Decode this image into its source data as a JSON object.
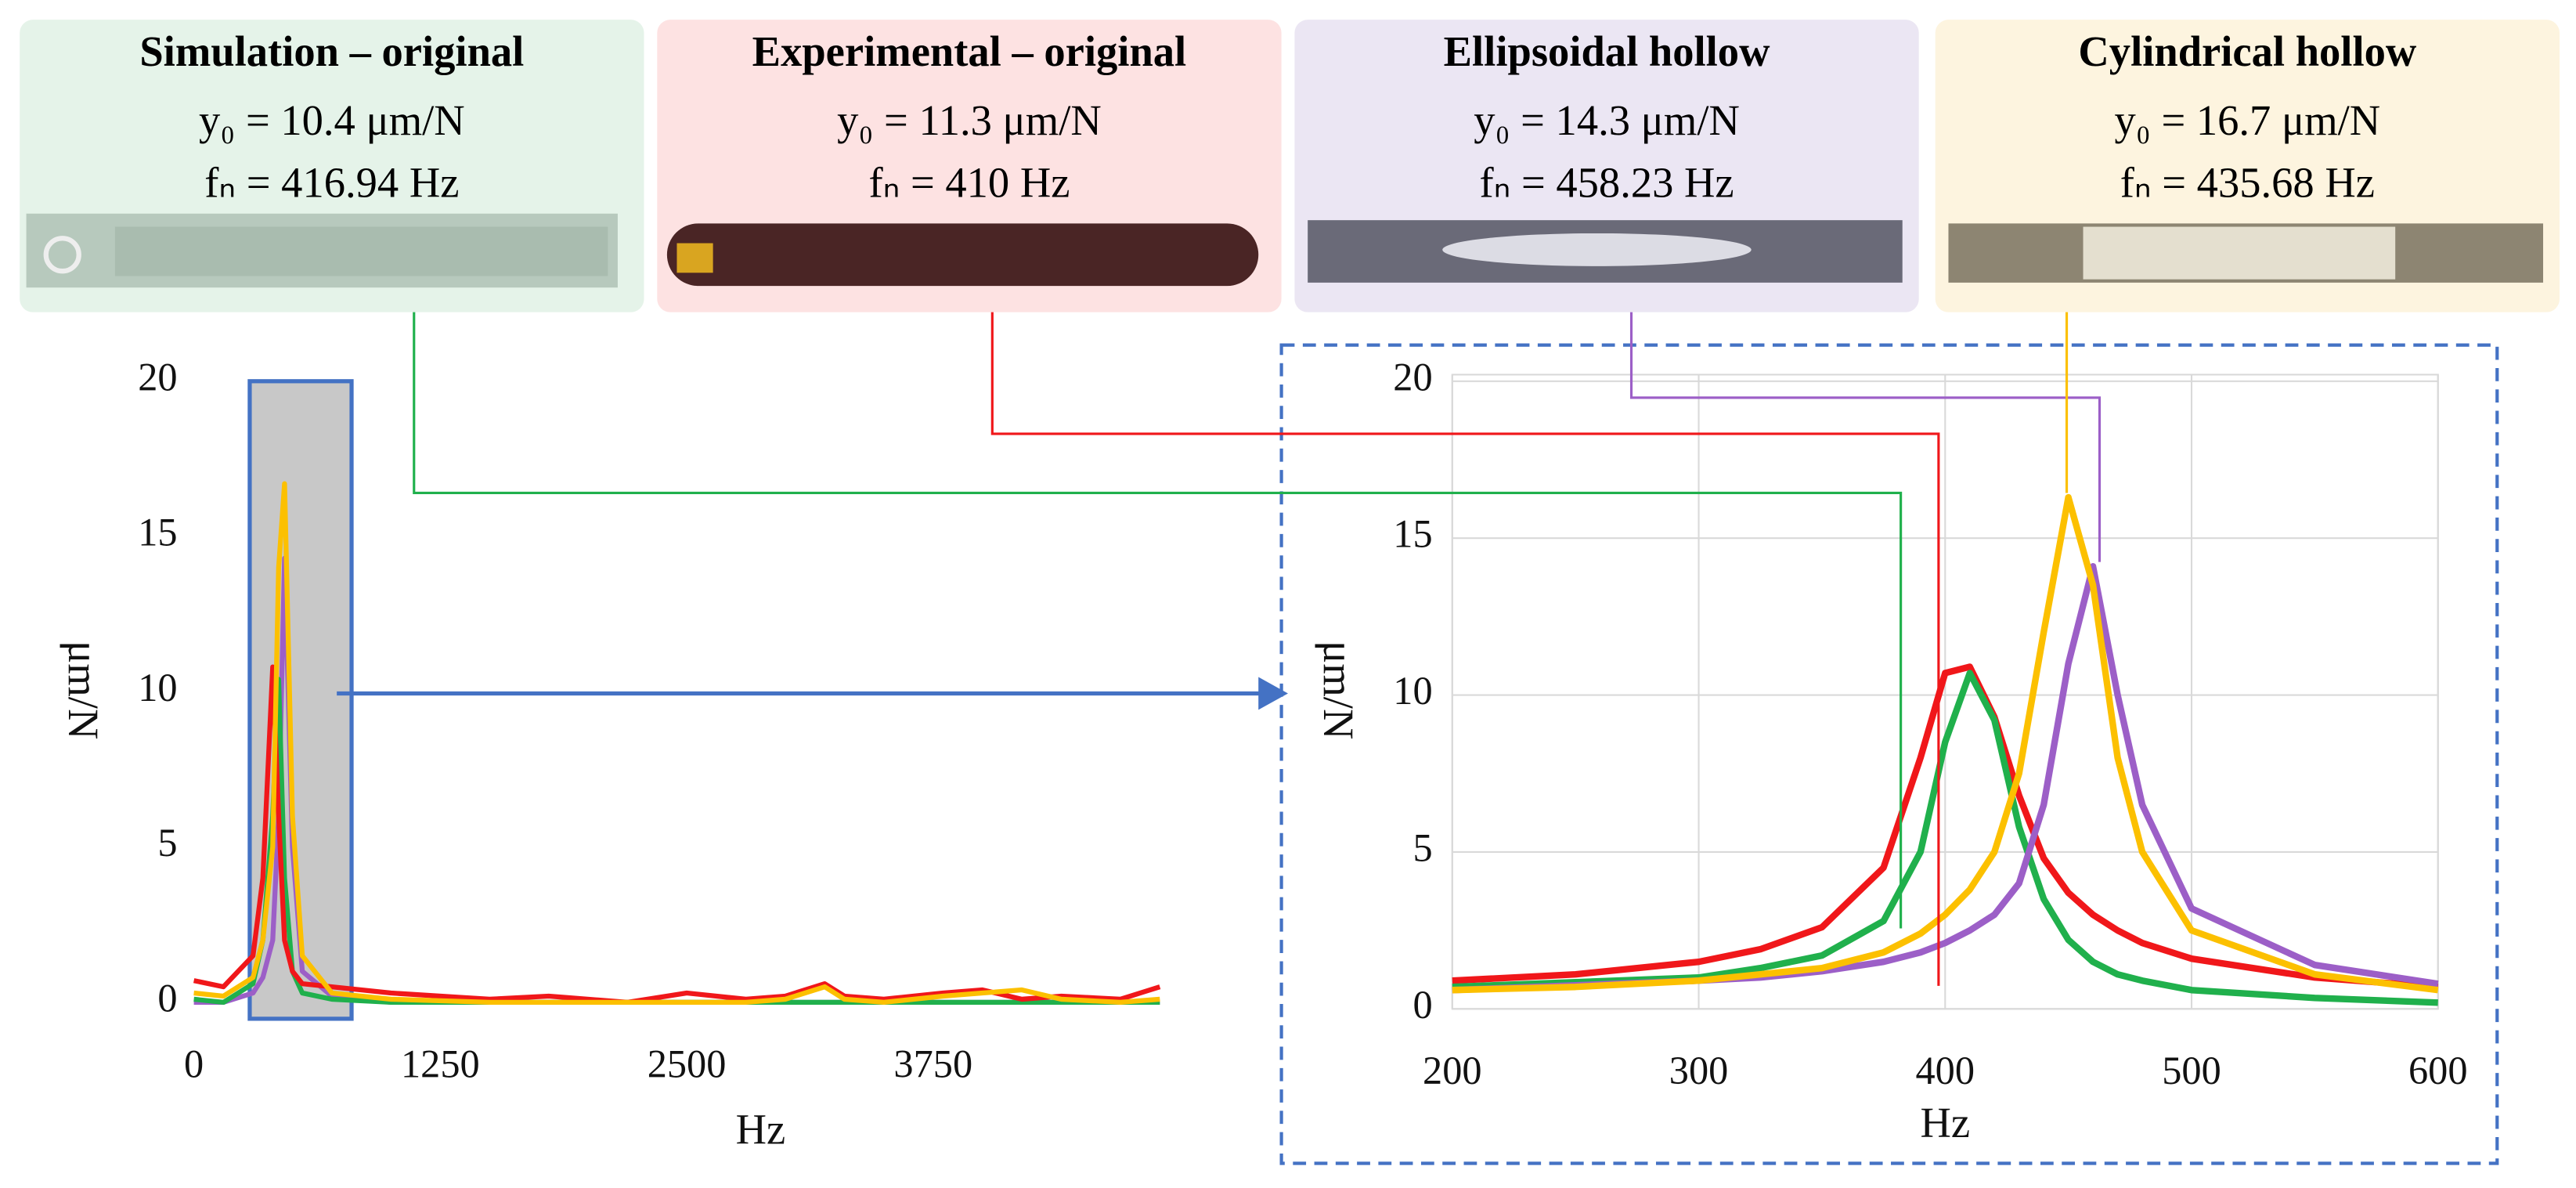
{
  "panels": [
    {
      "title": "Simulation – original",
      "stiffness": "y₀ = 10.4 μm/N",
      "frequency": "fₙ = 416.94 Hz",
      "color": "#e5f3e9"
    },
    {
      "title": "Experimental – original",
      "stiffness": "y₀ = 11.3 μm/N",
      "frequency": "fₙ = 410 Hz",
      "color": "#fde2e2"
    },
    {
      "title": "Ellipsoidal hollow",
      "stiffness": "y₀ = 14.3 μm/N",
      "frequency": "fₙ = 458.23 Hz",
      "color": "#ebe6f3"
    },
    {
      "title": "Cylindrical hollow",
      "stiffness": "y₀ = 16.7 μm/N",
      "frequency": "fₙ = 435.68 Hz",
      "color": "#fdf4df"
    }
  ],
  "chart_data": [
    {
      "type": "line",
      "xlabel": "Hz",
      "ylabel": "μm/N",
      "grid": false,
      "x": [
        0,
        150,
        300,
        350,
        400,
        430,
        460,
        500,
        550,
        700,
        1000,
        1500,
        1800,
        2200,
        2500,
        2800,
        3000,
        3200,
        3300,
        3500,
        3800,
        4000,
        4200,
        4400,
        4700,
        4900
      ],
      "xlim": [
        0,
        5250
      ],
      "xticks": [
        0,
        1250,
        2500,
        3750
      ],
      "ylim": [
        0,
        20
      ],
      "yticks": [
        0,
        5,
        10,
        15,
        20
      ],
      "series": [
        {
          "color": "#9c5fc7",
          "values": [
            0,
            0,
            0.3,
            0.8,
            2,
            6,
            14.3,
            5,
            1,
            0.2,
            0,
            0,
            0,
            0,
            0,
            0,
            0,
            0,
            0,
            0,
            0,
            0,
            0,
            0,
            0,
            0
          ]
        },
        {
          "color": "#20b04c",
          "values": [
            0.1,
            0,
            0.6,
            2,
            6,
            10.4,
            4,
            1,
            0.3,
            0.1,
            0,
            0,
            0,
            0,
            0,
            0,
            0,
            0,
            0,
            0,
            0,
            0,
            0,
            0,
            0,
            0
          ]
        },
        {
          "color": "#f0171a",
          "values": [
            0.7,
            0.5,
            1.5,
            4,
            10.8,
            6,
            2,
            1,
            0.6,
            0.5,
            0.3,
            0.1,
            0.2,
            0,
            0.3,
            0.1,
            0.2,
            0.6,
            0.2,
            0.1,
            0.3,
            0.4,
            0.1,
            0.2,
            0.1,
            0.5
          ]
        },
        {
          "color": "#fcc000",
          "values": [
            0.3,
            0.2,
            0.8,
            2,
            5,
            14,
            16.7,
            6,
            1.5,
            0.3,
            0.1,
            0,
            0,
            0,
            0,
            0,
            0.1,
            0.5,
            0.1,
            0,
            0.2,
            0.3,
            0.4,
            0.1,
            0,
            0.1
          ]
        }
      ]
    },
    {
      "type": "line",
      "xlabel": "Hz",
      "ylabel": "μm/N",
      "grid": true,
      "x": [
        200,
        250,
        300,
        325,
        350,
        375,
        390,
        400,
        410,
        420,
        430,
        440,
        450,
        460,
        470,
        480,
        500,
        550,
        600
      ],
      "xlim": [
        200,
        600
      ],
      "xticks": [
        200,
        300,
        400,
        500,
        600
      ],
      "ylim": [
        0,
        20
      ],
      "yticks": [
        0,
        5,
        10,
        15,
        20
      ],
      "series": [
        {
          "color": "#f0171a",
          "values": [
            0.9,
            1.1,
            1.5,
            1.9,
            2.6,
            4.5,
            8,
            10.7,
            10.9,
            9.3,
            6.8,
            4.8,
            3.7,
            3.0,
            2.5,
            2.1,
            1.6,
            1.0,
            0.7
          ]
        },
        {
          "color": "#20b04c",
          "values": [
            0.7,
            0.85,
            1.0,
            1.3,
            1.7,
            2.8,
            5,
            8.5,
            10.7,
            9.2,
            5.8,
            3.5,
            2.2,
            1.5,
            1.1,
            0.9,
            0.6,
            0.35,
            0.2
          ]
        },
        {
          "color": "#9c5fc7",
          "values": [
            0.6,
            0.75,
            0.9,
            1.0,
            1.2,
            1.5,
            1.8,
            2.1,
            2.5,
            3.0,
            4.0,
            6.5,
            11,
            14.1,
            10,
            6.5,
            3.2,
            1.4,
            0.8
          ]
        },
        {
          "color": "#fcc000",
          "values": [
            0.6,
            0.7,
            0.9,
            1.1,
            1.3,
            1.8,
            2.4,
            3.0,
            3.8,
            5.0,
            7.5,
            12,
            16.3,
            13.5,
            8,
            5,
            2.5,
            1.1,
            0.6
          ]
        }
      ]
    }
  ]
}
